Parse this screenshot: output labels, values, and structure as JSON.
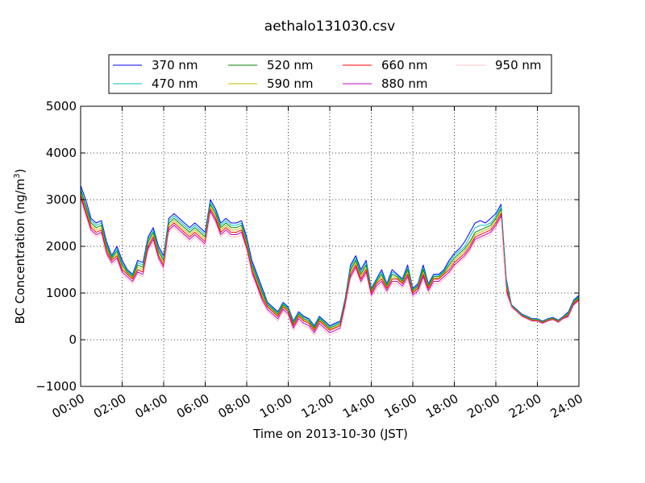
{
  "chart_data": {
    "type": "line",
    "title": "aethalo131030.csv",
    "xlabel": "Time on 2013-10-30 (JST)",
    "ylabel": "BC Concentration (ng/m³)",
    "ylabel_parts": {
      "main": "BC Concentration (ng/m",
      "sup": "3",
      "close": ")"
    },
    "xlim": [
      0,
      24
    ],
    "ylim": [
      -1000,
      5000
    ],
    "x_ticks": [
      0,
      2,
      4,
      6,
      8,
      10,
      12,
      14,
      16,
      18,
      20,
      22,
      24
    ],
    "x_tick_labels": [
      "00:00",
      "02:00",
      "04:00",
      "06:00",
      "08:00",
      "10:00",
      "12:00",
      "14:00",
      "16:00",
      "18:00",
      "20:00",
      "22:00",
      "24:00"
    ],
    "y_ticks": [
      -1000,
      0,
      1000,
      2000,
      3000,
      4000,
      5000
    ],
    "y_tick_labels": [
      "−1000",
      "0",
      "1000",
      "2000",
      "3000",
      "4000",
      "5000"
    ],
    "grid": true,
    "legend_position": "top, above plot",
    "x_hours": [
      0.0,
      0.25,
      0.5,
      0.75,
      1.0,
      1.25,
      1.5,
      1.75,
      2.0,
      2.25,
      2.5,
      2.75,
      3.0,
      3.25,
      3.5,
      3.75,
      4.0,
      4.25,
      4.5,
      4.75,
      5.0,
      5.25,
      5.5,
      5.75,
      6.0,
      6.25,
      6.5,
      6.75,
      7.0,
      7.25,
      7.5,
      7.75,
      8.0,
      8.25,
      8.5,
      8.75,
      9.0,
      9.25,
      9.5,
      9.75,
      10.0,
      10.25,
      10.5,
      10.75,
      11.0,
      11.25,
      11.5,
      11.75,
      12.0,
      12.25,
      12.5,
      12.75,
      13.0,
      13.25,
      13.5,
      13.75,
      14.0,
      14.25,
      14.5,
      14.75,
      15.0,
      15.25,
      15.5,
      15.75,
      16.0,
      16.25,
      16.5,
      16.75,
      17.0,
      17.25,
      17.5,
      17.75,
      18.0,
      18.25,
      18.5,
      18.75,
      19.0,
      19.25,
      19.5,
      19.75,
      20.0,
      20.25,
      20.5,
      20.75,
      21.0,
      21.25,
      21.5,
      21.75,
      22.0,
      22.25,
      22.5,
      22.75,
      23.0,
      23.25,
      23.5,
      23.75,
      24.0
    ],
    "series": [
      {
        "name": "370 nm",
        "color": "#0000ff",
        "values": [
          3300,
          3000,
          2600,
          2500,
          2550,
          2100,
          1800,
          2000,
          1700,
          1500,
          1400,
          1700,
          1650,
          2200,
          2400,
          2000,
          1800,
          2600,
          2700,
          2600,
          2500,
          2400,
          2500,
          2400,
          2300,
          3000,
          2800,
          2500,
          2600,
          2500,
          2500,
          2550,
          2200,
          1700,
          1400,
          1100,
          800,
          700,
          600,
          800,
          700,
          400,
          600,
          500,
          450,
          300,
          500,
          400,
          300,
          350,
          400,
          900,
          1600,
          1800,
          1500,
          1700,
          1100,
          1300,
          1500,
          1200,
          1500,
          1400,
          1300,
          1600,
          1100,
          1200,
          1600,
          1200,
          1400,
          1400,
          1500,
          1700,
          1850,
          1950,
          2100,
          2300,
          2500,
          2550,
          2500,
          2600,
          2700,
          2900,
          1300,
          750,
          650,
          550,
          500,
          450,
          450,
          400,
          450,
          480,
          420,
          500,
          600,
          850,
          950
        ]
      },
      {
        "name": "470 nm",
        "color": "#00bfbf",
        "values": [
          3250,
          2900,
          2550,
          2450,
          2500,
          2050,
          1780,
          1950,
          1650,
          1480,
          1380,
          1650,
          1600,
          2150,
          2350,
          1950,
          1750,
          2550,
          2650,
          2550,
          2450,
          2350,
          2450,
          2350,
          2250,
          2950,
          2750,
          2450,
          2550,
          2450,
          2450,
          2500,
          2150,
          1650,
          1350,
          1050,
          780,
          680,
          580,
          780,
          680,
          380,
          580,
          480,
          430,
          280,
          480,
          380,
          280,
          330,
          380,
          880,
          1550,
          1750,
          1450,
          1650,
          1080,
          1280,
          1450,
          1180,
          1450,
          1380,
          1280,
          1550,
          1080,
          1180,
          1550,
          1180,
          1380,
          1380,
          1480,
          1650,
          1800,
          1900,
          2000,
          2200,
          2400,
          2450,
          2450,
          2500,
          2650,
          2850,
          1250,
          740,
          640,
          540,
          490,
          440,
          440,
          390,
          440,
          470,
          410,
          490,
          580,
          830,
          930
        ]
      },
      {
        "name": "520 nm",
        "color": "#008000",
        "values": [
          3200,
          2850,
          2500,
          2400,
          2450,
          2000,
          1750,
          1900,
          1600,
          1450,
          1350,
          1600,
          1550,
          2100,
          2300,
          1900,
          1700,
          2500,
          2600,
          2500,
          2400,
          2300,
          2400,
          2300,
          2200,
          2900,
          2700,
          2400,
          2500,
          2400,
          2400,
          2450,
          2100,
          1600,
          1300,
          1000,
          750,
          650,
          550,
          750,
          650,
          350,
          550,
          450,
          400,
          250,
          450,
          350,
          250,
          300,
          350,
          850,
          1500,
          1700,
          1400,
          1600,
          1050,
          1250,
          1400,
          1150,
          1400,
          1350,
          1250,
          1500,
          1050,
          1150,
          1500,
          1150,
          1350,
          1350,
          1450,
          1600,
          1750,
          1850,
          1950,
          2100,
          2300,
          2350,
          2400,
          2450,
          2600,
          2800,
          1200,
          730,
          630,
          530,
          480,
          430,
          430,
          380,
          430,
          460,
          400,
          480,
          560,
          810,
          910
        ]
      },
      {
        "name": "590 nm",
        "color": "#bfbf00",
        "values": [
          3150,
          2800,
          2450,
          2350,
          2400,
          1950,
          1720,
          1850,
          1550,
          1420,
          1320,
          1550,
          1500,
          2050,
          2250,
          1850,
          1650,
          2450,
          2550,
          2450,
          2350,
          2250,
          2350,
          2250,
          2150,
          2850,
          2650,
          2350,
          2450,
          2350,
          2350,
          2400,
          2050,
          1550,
          1250,
          950,
          720,
          620,
          520,
          720,
          620,
          320,
          520,
          420,
          370,
          220,
          420,
          320,
          220,
          270,
          320,
          820,
          1450,
          1650,
          1350,
          1550,
          1020,
          1220,
          1350,
          1120,
          1350,
          1320,
          1220,
          1450,
          1020,
          1120,
          1450,
          1120,
          1320,
          1320,
          1420,
          1550,
          1700,
          1800,
          1900,
          2050,
          2250,
          2300,
          2350,
          2400,
          2550,
          2750,
          1150,
          720,
          620,
          520,
          470,
          420,
          420,
          370,
          420,
          450,
          390,
          470,
          540,
          790,
          890
        ]
      },
      {
        "name": "660 nm",
        "color": "#ff0000",
        "values": [
          3100,
          2750,
          2400,
          2300,
          2350,
          1900,
          1700,
          1800,
          1500,
          1400,
          1300,
          1500,
          1450,
          2000,
          2200,
          1800,
          1600,
          2400,
          2500,
          2400,
          2300,
          2200,
          2300,
          2200,
          2100,
          2800,
          2600,
          2300,
          2400,
          2300,
          2300,
          2350,
          2000,
          1500,
          1200,
          900,
          700,
          600,
          500,
          700,
          600,
          300,
          500,
          400,
          350,
          200,
          400,
          300,
          200,
          250,
          300,
          800,
          1400,
          1600,
          1300,
          1500,
          1000,
          1200,
          1300,
          1100,
          1300,
          1300,
          1200,
          1400,
          1000,
          1100,
          1400,
          1100,
          1300,
          1300,
          1400,
          1500,
          1650,
          1750,
          1850,
          2000,
          2200,
          2250,
          2300,
          2350,
          2500,
          2700,
          1100,
          710,
          610,
          510,
          460,
          410,
          410,
          360,
          410,
          440,
          380,
          460,
          520,
          770,
          870
        ]
      },
      {
        "name": "880 nm",
        "color": "#bf00bf",
        "values": [
          3050,
          2700,
          2350,
          2250,
          2300,
          1850,
          1650,
          1750,
          1450,
          1350,
          1250,
          1450,
          1400,
          1950,
          2150,
          1750,
          1550,
          2350,
          2450,
          2350,
          2250,
          2150,
          2250,
          2150,
          2050,
          2750,
          2550,
          2250,
          2350,
          2250,
          2250,
          2300,
          1950,
          1450,
          1150,
          850,
          650,
          550,
          450,
          650,
          550,
          250,
          450,
          350,
          300,
          150,
          350,
          250,
          150,
          200,
          250,
          750,
          1350,
          1550,
          1250,
          1450,
          950,
          1150,
          1250,
          1050,
          1250,
          1250,
          1150,
          1350,
          950,
          1050,
          1350,
          1050,
          1250,
          1250,
          1350,
          1450,
          1600,
          1700,
          1800,
          1950,
          2150,
          2200,
          2250,
          2300,
          2450,
          2650,
          1050,
          700,
          600,
          500,
          450,
          400,
          400,
          350,
          400,
          430,
          370,
          450,
          500,
          750,
          850
        ]
      },
      {
        "name": "950 nm",
        "color": "#ffc0cb",
        "values": [
          3000,
          2650,
          2300,
          2200,
          2250,
          1800,
          1600,
          1700,
          1400,
          1300,
          1200,
          1400,
          1350,
          1900,
          2100,
          1700,
          1500,
          2300,
          2400,
          2300,
          2200,
          2100,
          2200,
          2100,
          2000,
          2700,
          2500,
          2200,
          2300,
          2200,
          2200,
          2250,
          1900,
          1400,
          1100,
          800,
          600,
          500,
          400,
          600,
          500,
          200,
          400,
          300,
          250,
          100,
          300,
          200,
          100,
          150,
          200,
          700,
          1300,
          1500,
          1200,
          1400,
          900,
          1100,
          1200,
          1000,
          1200,
          1200,
          1100,
          1300,
          900,
          1000,
          1300,
          1000,
          1200,
          1200,
          1300,
          1400,
          1550,
          1650,
          1750,
          1900,
          2100,
          2150,
          2200,
          2250,
          2400,
          2600,
          1000,
          690,
          590,
          490,
          440,
          390,
          390,
          340,
          390,
          420,
          360,
          440,
          480,
          730,
          830
        ]
      }
    ]
  }
}
